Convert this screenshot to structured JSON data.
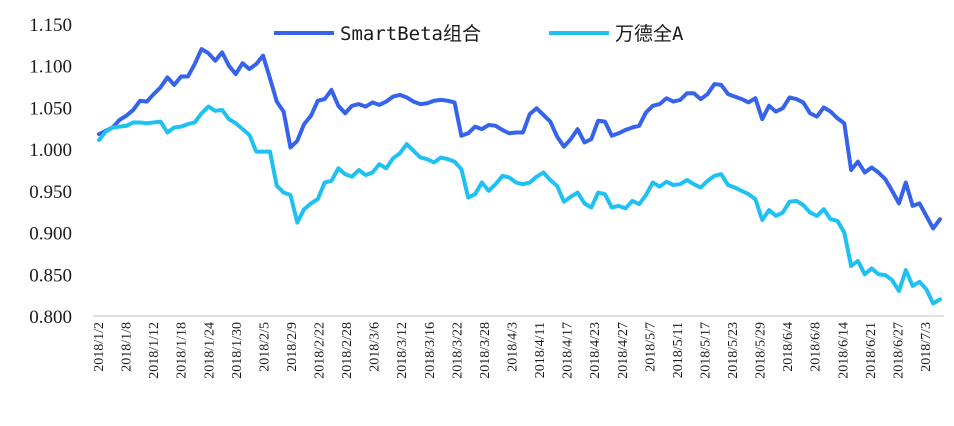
{
  "chart_data": {
    "type": "line",
    "title": "",
    "xlabel": "",
    "ylabel": "",
    "ylim": [
      0.8,
      1.15
    ],
    "yticks": [
      "1.150",
      "1.100",
      "1.050",
      "1.000",
      "0.950",
      "0.900",
      "0.850",
      "0.800"
    ],
    "ytick_values": [
      1.15,
      1.1,
      1.05,
      1.0,
      0.95,
      0.9,
      0.85,
      0.8
    ],
    "x_labels": [
      "2018/1/2",
      "2018/1/8",
      "2018/1/12",
      "2018/1/18",
      "2018/1/24",
      "2018/1/30",
      "2018/2/5",
      "2018/2/9",
      "2018/2/22",
      "2018/2/28",
      "2018/3/6",
      "2018/3/12",
      "2018/3/16",
      "2018/3/22",
      "2018/3/28",
      "2018/4/3",
      "2018/4/11",
      "2018/4/17",
      "2018/4/23",
      "2018/4/27",
      "2018/5/7",
      "2018/5/11",
      "2018/5/17",
      "2018/5/23",
      "2018/5/29",
      "2018/6/4",
      "2018/6/8",
      "2018/6/14",
      "2018/6/21",
      "2018/6/27",
      "2018/7/3"
    ],
    "grid": false,
    "legend_position": "top-center",
    "series": [
      {
        "name": "SmartBeta组合",
        "color": "#3563E9",
        "values": [
          1.018,
          1.022,
          1.026,
          1.035,
          1.04,
          1.047,
          1.058,
          1.057,
          1.066,
          1.074,
          1.086,
          1.077,
          1.087,
          1.087,
          1.102,
          1.12,
          1.115,
          1.106,
          1.116,
          1.1,
          1.09,
          1.103,
          1.096,
          1.102,
          1.112,
          1.085,
          1.057,
          1.045,
          1.002,
          1.01,
          1.03,
          1.04,
          1.058,
          1.06,
          1.071,
          1.052,
          1.043,
          1.052,
          1.054,
          1.051,
          1.056,
          1.053,
          1.057,
          1.063,
          1.065,
          1.062,
          1.057,
          1.054,
          1.055,
          1.058,
          1.059,
          1.058,
          1.056,
          1.016,
          1.019,
          1.027,
          1.024,
          1.029,
          1.028,
          1.023,
          1.019,
          1.02,
          1.02,
          1.042,
          1.049,
          1.041,
          1.033,
          1.015,
          1.003,
          1.012,
          1.024,
          1.008,
          1.012,
          1.034,
          1.033,
          1.016,
          1.019,
          1.023,
          1.026,
          1.028,
          1.044,
          1.052,
          1.054,
          1.061,
          1.057,
          1.059,
          1.067,
          1.067,
          1.06,
          1.066,
          1.078,
          1.077,
          1.066,
          1.063,
          1.06,
          1.056,
          1.061,
          1.036,
          1.052,
          1.045,
          1.049,
          1.062,
          1.06,
          1.056,
          1.043,
          1.039,
          1.05,
          1.045,
          1.037,
          1.031,
          0.975,
          0.985,
          0.972,
          0.978,
          0.972,
          0.964,
          0.95,
          0.935,
          0.96,
          0.932,
          0.935,
          0.92,
          0.905,
          0.916
        ]
      },
      {
        "name": "万德全A",
        "color": "#1EC1F2",
        "values": [
          1.011,
          1.021,
          1.026,
          1.027,
          1.028,
          1.032,
          1.032,
          1.031,
          1.032,
          1.033,
          1.02,
          1.026,
          1.027,
          1.03,
          1.032,
          1.043,
          1.051,
          1.046,
          1.047,
          1.036,
          1.031,
          1.024,
          1.017,
          0.997,
          0.997,
          0.997,
          0.956,
          0.948,
          0.945,
          0.912,
          0.928,
          0.935,
          0.94,
          0.96,
          0.962,
          0.977,
          0.97,
          0.967,
          0.975,
          0.969,
          0.972,
          0.982,
          0.977,
          0.989,
          0.995,
          1.006,
          0.998,
          0.99,
          0.988,
          0.984,
          0.99,
          0.988,
          0.985,
          0.976,
          0.942,
          0.946,
          0.96,
          0.95,
          0.958,
          0.968,
          0.966,
          0.96,
          0.958,
          0.96,
          0.967,
          0.972,
          0.963,
          0.956,
          0.937,
          0.943,
          0.948,
          0.935,
          0.93,
          0.948,
          0.946,
          0.93,
          0.932,
          0.929,
          0.938,
          0.934,
          0.945,
          0.96,
          0.955,
          0.961,
          0.957,
          0.958,
          0.963,
          0.958,
          0.954,
          0.962,
          0.968,
          0.97,
          0.957,
          0.954,
          0.95,
          0.946,
          0.94,
          0.915,
          0.927,
          0.92,
          0.924,
          0.937,
          0.938,
          0.933,
          0.924,
          0.92,
          0.928,
          0.916,
          0.914,
          0.9,
          0.86,
          0.866,
          0.85,
          0.857,
          0.85,
          0.849,
          0.843,
          0.83,
          0.855,
          0.836,
          0.841,
          0.832,
          0.815,
          0.82
        ]
      }
    ]
  }
}
